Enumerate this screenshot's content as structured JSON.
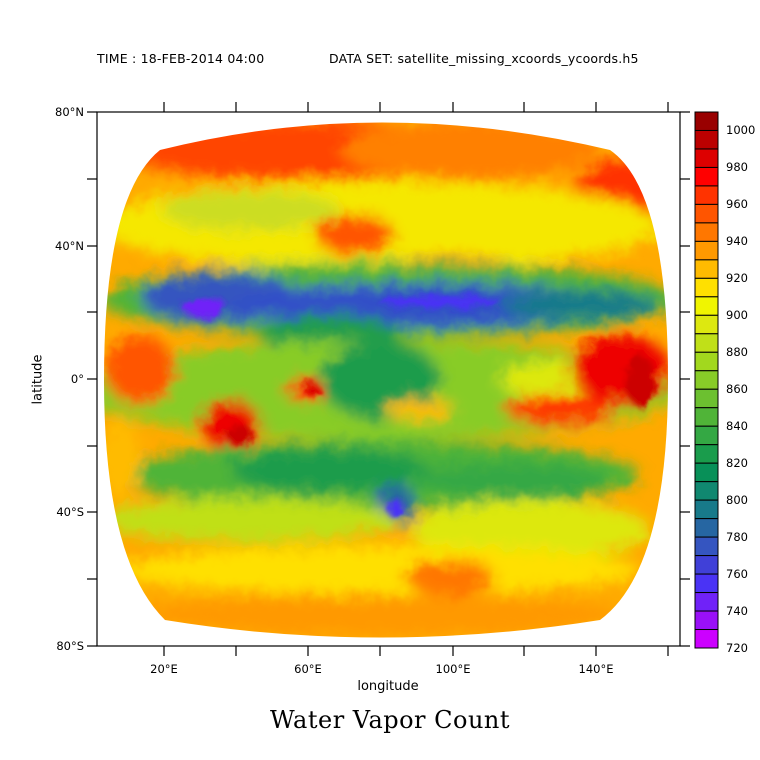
{
  "header": {
    "time_label": "TIME : 18-FEB-2014 04:00",
    "dataset_label": "DATA SET: satellite_missing_xcoords_ycoords.h5"
  },
  "chart_data": {
    "type": "heatmap",
    "title": "Water Vapor Count",
    "xlabel": "longitude",
    "ylabel": "latitude",
    "x_ticks": [
      "20°E",
      "60°E",
      "100°E",
      "140°E"
    ],
    "x_tick_values": [
      20,
      60,
      100,
      140
    ],
    "x_minor_ticks": [
      40,
      80,
      120,
      160
    ],
    "xlim": [
      0,
      162
    ],
    "y_ticks": [
      "80°N",
      "40°N",
      "0°",
      "40°S",
      "80°S"
    ],
    "y_tick_values": [
      80,
      40,
      0,
      -40,
      -80
    ],
    "y_minor_ticks": [
      60,
      20,
      -20,
      -60
    ],
    "ylim": [
      -80,
      80
    ],
    "grid": false,
    "legend_position": "right colorbar",
    "colorbar": {
      "min": 720,
      "max": 1010,
      "step": 10,
      "labels": [
        "1000",
        "980",
        "960",
        "940",
        "920",
        "900",
        "880",
        "860",
        "840",
        "820",
        "800",
        "780",
        "760",
        "740",
        "720"
      ],
      "label_values": [
        1000,
        980,
        960,
        940,
        920,
        900,
        880,
        860,
        840,
        820,
        800,
        780,
        760,
        740,
        720
      ],
      "colors_top_to_bottom": [
        "#990000",
        "#bb0000",
        "#dd0000",
        "#ff0000",
        "#ff3300",
        "#ff5500",
        "#ff7700",
        "#ff9900",
        "#ffbb00",
        "#ffe000",
        "#f0f500",
        "#dde810",
        "#c0e018",
        "#a2d81e",
        "#88cc28",
        "#6cc030",
        "#50b438",
        "#34a844",
        "#1a9c4c",
        "#089058",
        "#108870",
        "#187a8a",
        "#2666a2",
        "#3555c0",
        "#4040d8",
        "#4a33f5",
        "#7022f8",
        "#9a10f8",
        "#cc00ff"
      ]
    },
    "features": {
      "dry_band_north": "Blue/violet low values (~740-780) along 20-30°N from 20°E to 160°E",
      "dry_slot_south": "Blue core near 85°E, 40°S",
      "moist_tropics": "Red/orange high values (~960-1000) in tropical convection near 0-20°S, especially 130-160°E and 10-30°E",
      "high_latitudes": "Orange (~920-960) toward both poles"
    }
  }
}
